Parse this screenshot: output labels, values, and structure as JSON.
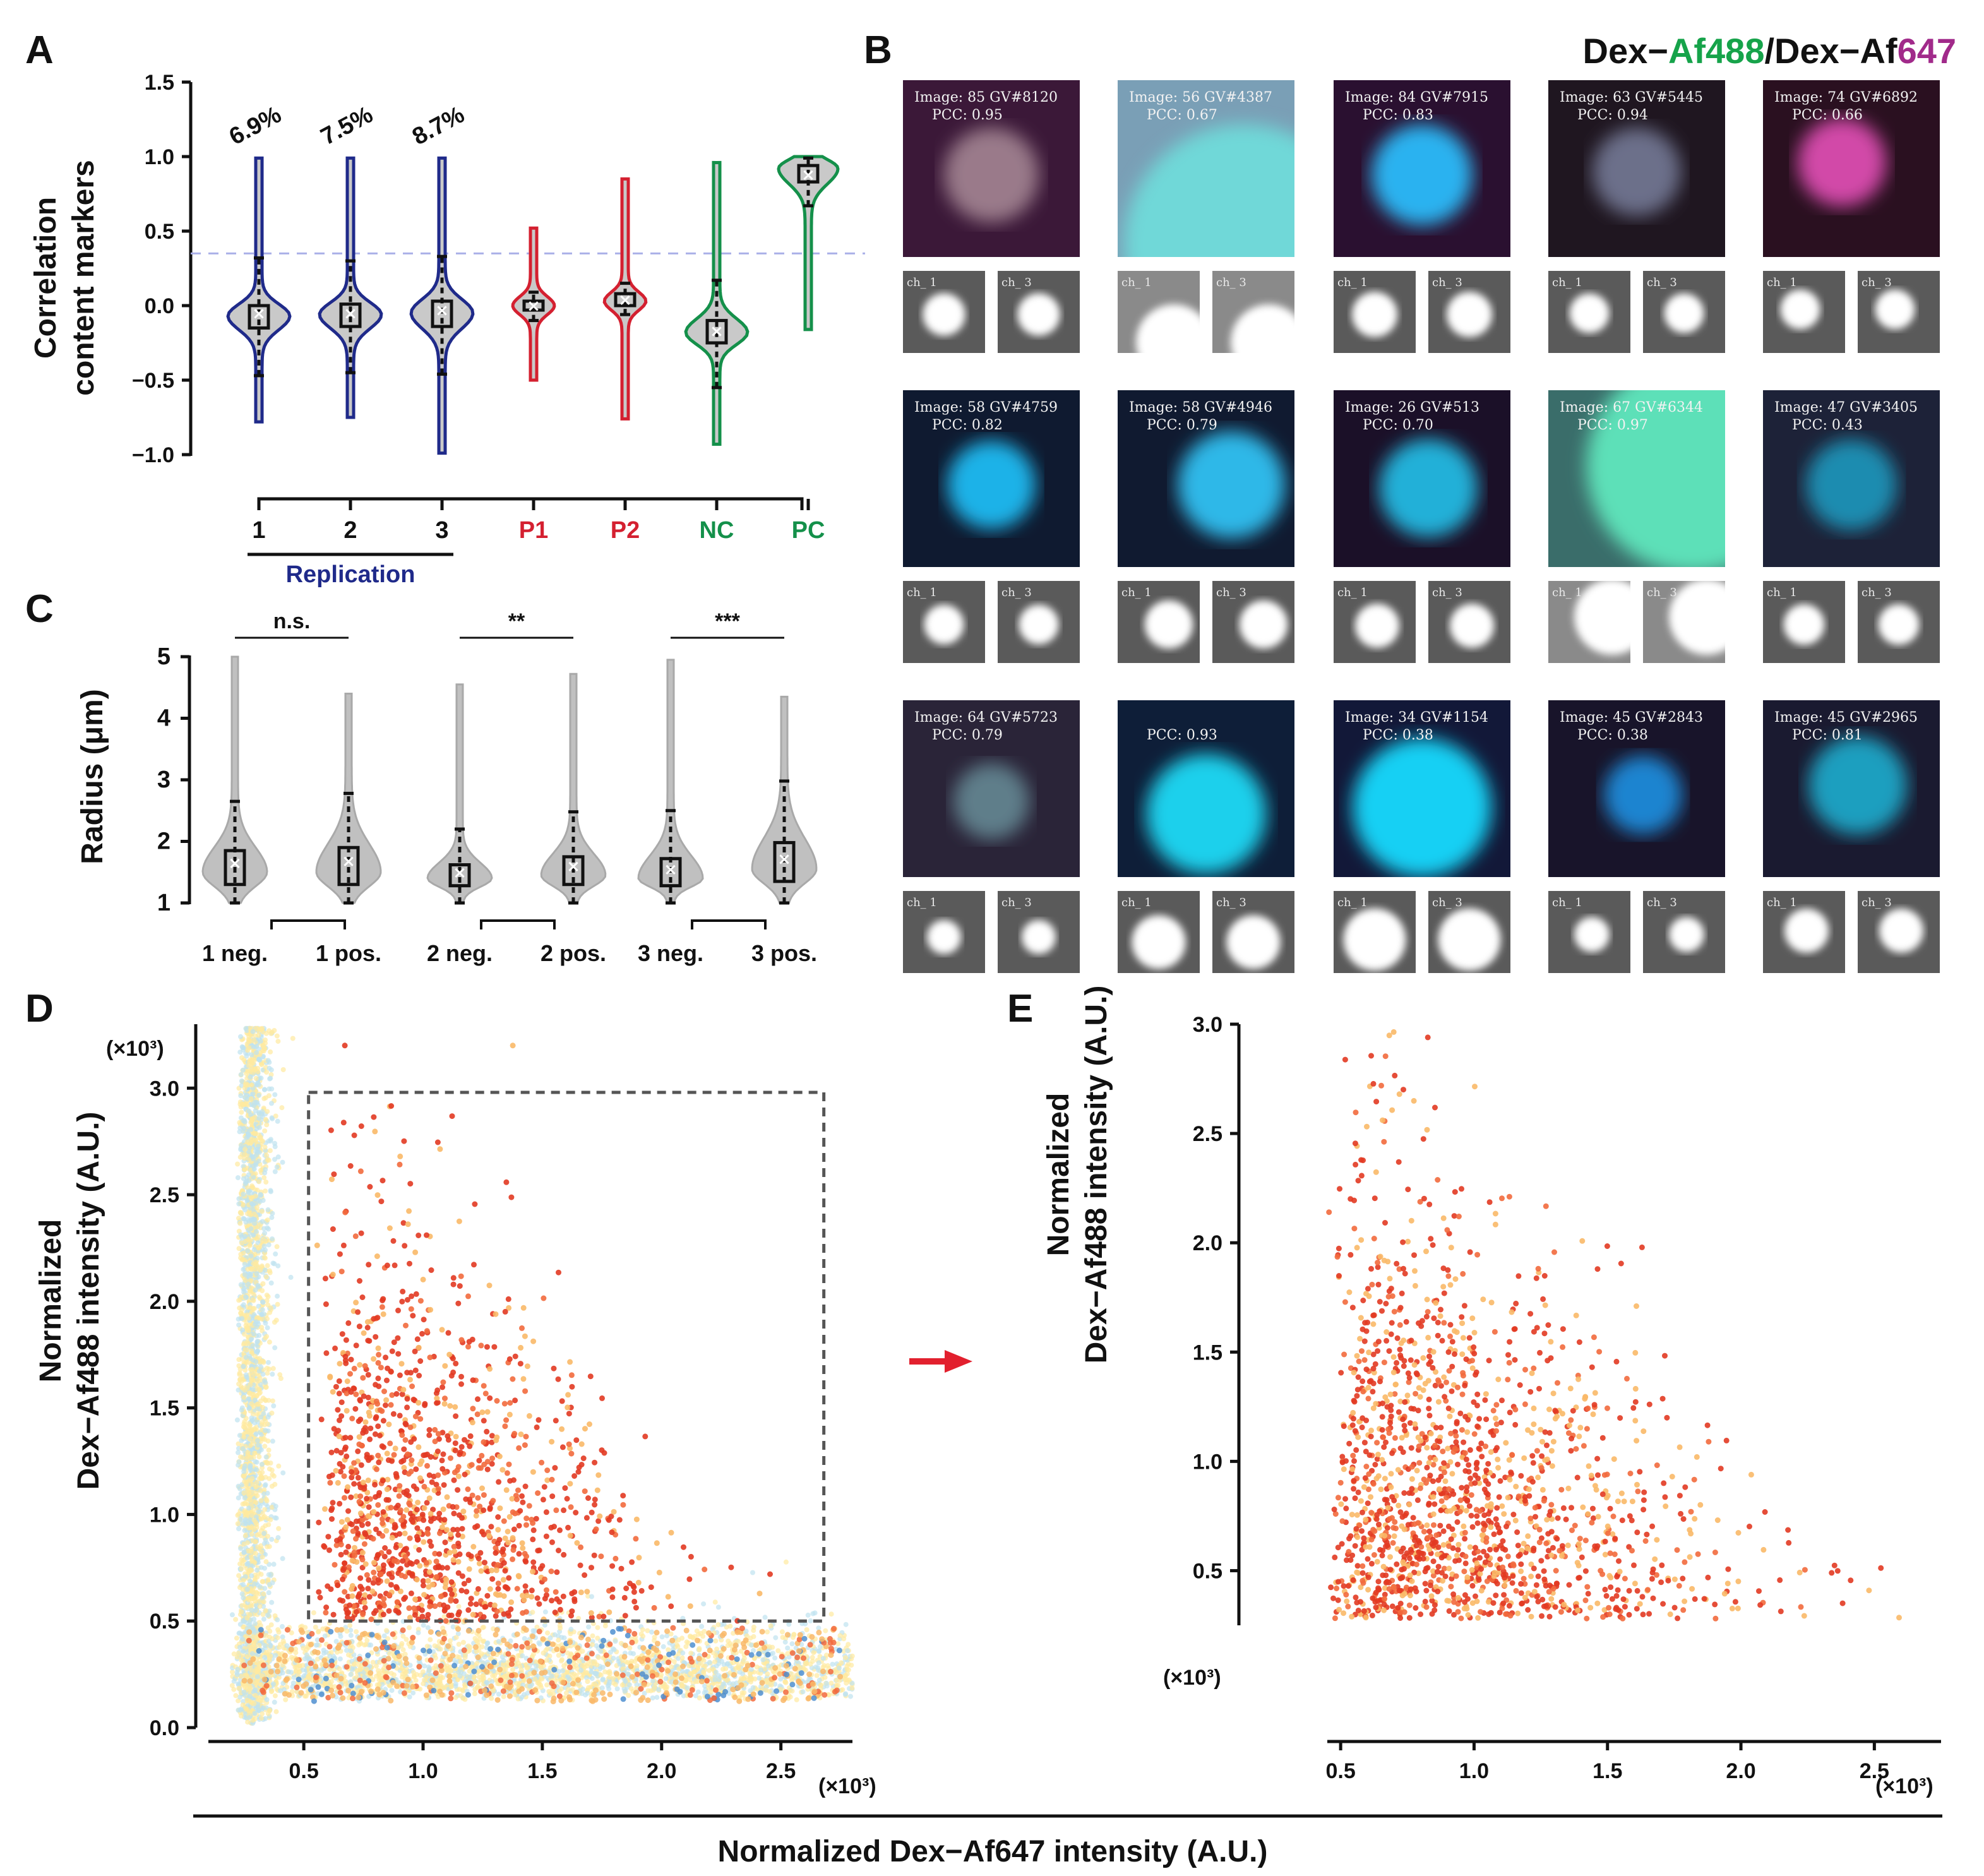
{
  "panels": {
    "A": "A",
    "B": "B",
    "C": "C",
    "D": "D",
    "E": "E"
  },
  "colors": {
    "replication": "#1f2a8a",
    "P": "#d42030",
    "control": "#14904a",
    "af488": "#16a34a",
    "af647": "#a12a8a",
    "threshold": "#aab0e8",
    "scatter": [
      "#ffe9a0",
      "#bfe3ef",
      "#f9b968",
      "#f26a3d",
      "#e23a22",
      "#4f8fd0"
    ]
  },
  "panelA": {
    "ylabel": [
      "Correlation",
      "content markers"
    ],
    "percentages": [
      "6.9%",
      "7.5%",
      "8.7%"
    ],
    "group_label": "Replication",
    "chart_data": {
      "type": "violin",
      "ylim": [
        -1.0,
        1.5
      ],
      "yticks": [
        "1.5",
        "1.0",
        "0.5",
        "0.0",
        "−0.5",
        "−1.0"
      ],
      "threshold": 0.35,
      "categories": [
        "1",
        "2",
        "3",
        "P1",
        "P2",
        "NC",
        "PC"
      ],
      "groups": [
        {
          "name": "1",
          "min": -0.78,
          "q1": -0.15,
          "median": -0.07,
          "q3": 0.0,
          "mean": -0.05,
          "wlo": -0.47,
          "whi": 0.32,
          "max": 0.99,
          "mode": -0.07
        },
        {
          "name": "2",
          "min": -0.75,
          "q1": -0.14,
          "median": -0.06,
          "q3": 0.01,
          "mean": -0.05,
          "wlo": -0.45,
          "whi": 0.3,
          "max": 0.99,
          "mode": -0.06
        },
        {
          "name": "3",
          "min": -0.99,
          "q1": -0.14,
          "median": -0.05,
          "q3": 0.03,
          "mean": -0.03,
          "wlo": -0.46,
          "whi": 0.33,
          "max": 0.99,
          "mode": -0.05
        },
        {
          "name": "P1",
          "min": -0.5,
          "q1": -0.03,
          "median": 0.0,
          "q3": 0.03,
          "mean": 0.0,
          "wlo": -0.1,
          "whi": 0.09,
          "max": 0.52,
          "mode": 0.0
        },
        {
          "name": "P2",
          "min": -0.76,
          "q1": 0.0,
          "median": 0.04,
          "q3": 0.08,
          "mean": 0.04,
          "wlo": -0.06,
          "whi": 0.15,
          "max": 0.85,
          "mode": 0.03
        },
        {
          "name": "NC",
          "min": -0.93,
          "q1": -0.25,
          "median": -0.17,
          "q3": -0.1,
          "mean": -0.17,
          "wlo": -0.55,
          "whi": 0.17,
          "max": 0.96,
          "mode": -0.18
        },
        {
          "name": "PC",
          "min": -0.16,
          "q1": 0.83,
          "median": 0.88,
          "q3": 0.94,
          "mean": 0.88,
          "wlo": 0.67,
          "whi": 0.99,
          "max": 1.0,
          "mode": 0.92
        }
      ]
    }
  },
  "panelB": {
    "title_prefix": "Dex−",
    "title_green": "Af488",
    "title_mid": "/Dex−Af",
    "title_pink": "647",
    "ch1": "ch_ 1",
    "ch3": "ch_ 3",
    "cells": [
      {
        "label": "Image: 85 GV#8120",
        "pcc": "PCC: 0.95"
      },
      {
        "label": "Image: 56 GV#4387",
        "pcc": "PCC: 0.67"
      },
      {
        "label": "Image: 84 GV#7915",
        "pcc": "PCC: 0.83"
      },
      {
        "label": "Image: 63 GV#5445",
        "pcc": "PCC: 0.94"
      },
      {
        "label": "Image: 74 GV#6892",
        "pcc": "PCC: 0.66"
      },
      {
        "label": "Image: 58 GV#4759",
        "pcc": "PCC: 0.82"
      },
      {
        "label": "Image: 58 GV#4946",
        "pcc": "PCC: 0.79"
      },
      {
        "label": "Image: 26 GV#513",
        "pcc": "PCC: 0.70"
      },
      {
        "label": "Image: 67 GV#6344",
        "pcc": "PCC: 0.97"
      },
      {
        "label": "Image: 47 GV#3405",
        "pcc": "PCC: 0.43"
      },
      {
        "label": "Image: 64 GV#5723",
        "pcc": "PCC: 0.79"
      },
      {
        "label": "",
        "pcc": "PCC: 0.93"
      },
      {
        "label": "Image: 34 GV#1154",
        "pcc": "PCC: 0.38"
      },
      {
        "label": "Image: 45 GV#2843",
        "pcc": "PCC: 0.38"
      },
      {
        "label": "Image: 45 GV#2965",
        "pcc": "PCC: 0.81"
      }
    ]
  },
  "panelC": {
    "ylabel": "Radius (μm)",
    "sig": [
      "n.s.",
      "**",
      "***"
    ],
    "chart_data": {
      "type": "violin",
      "ylim": [
        1,
        5
      ],
      "yticks": [
        "5",
        "4",
        "3",
        "2",
        "1"
      ],
      "categories": [
        "1 neg.",
        "1 pos.",
        "2 neg.",
        "2 pos.",
        "3 neg.",
        "3 pos."
      ],
      "groups": [
        {
          "name": "1 neg.",
          "min": 1.0,
          "q1": 1.3,
          "median": 1.5,
          "q3": 1.85,
          "mean": 1.65,
          "whi": 2.65,
          "max": 5.0,
          "mode": 1.5
        },
        {
          "name": "1 pos.",
          "min": 1.0,
          "q1": 1.3,
          "median": 1.55,
          "q3": 1.9,
          "mean": 1.68,
          "whi": 2.78,
          "max": 4.4,
          "mode": 1.5
        },
        {
          "name": "2 neg.",
          "min": 1.0,
          "q1": 1.28,
          "median": 1.42,
          "q3": 1.62,
          "mean": 1.5,
          "whi": 2.2,
          "max": 4.55,
          "mode": 1.4
        },
        {
          "name": "2 pos.",
          "min": 1.0,
          "q1": 1.3,
          "median": 1.5,
          "q3": 1.75,
          "mean": 1.6,
          "whi": 2.48,
          "max": 4.72,
          "mode": 1.45
        },
        {
          "name": "3 neg.",
          "min": 1.0,
          "q1": 1.28,
          "median": 1.45,
          "q3": 1.72,
          "mean": 1.55,
          "whi": 2.5,
          "max": 4.95,
          "mode": 1.4
        },
        {
          "name": "3 pos.",
          "min": 1.0,
          "q1": 1.35,
          "median": 1.6,
          "q3": 1.98,
          "mean": 1.72,
          "whi": 2.98,
          "max": 4.35,
          "mode": 1.55
        }
      ]
    }
  },
  "panelD": {
    "ylabel": [
      "Normalized",
      "Dex−Af488 intensity (A.U.)"
    ],
    "scale_y": "(×10³)",
    "scale_x": "(×10³)",
    "chart_data": {
      "type": "scatter",
      "xlim": [
        0.1,
        2.8
      ],
      "ylim": [
        0.0,
        3.3
      ],
      "xticks": [
        "0.5",
        "1.0",
        "1.5",
        "2.0",
        "2.5"
      ],
      "yticks": [
        "0.0",
        "0.5",
        "1.0",
        "1.5",
        "2.0",
        "2.5",
        "3.0"
      ],
      "gate": {
        "x": [
          0.52,
          2.68
        ],
        "y": [
          0.5,
          2.98
        ]
      },
      "description": "dense cluster along x=0.2-0.3 and y=0.1-0.4; colored points extend into gated region"
    }
  },
  "panelE": {
    "ylabel": [
      "Normalized",
      "Dex−Af488 intensity (A.U.)"
    ],
    "scale_y": "(×10³)",
    "scale_x": "(×10³)",
    "chart_data": {
      "type": "scatter",
      "xlim": [
        0.45,
        2.75
      ],
      "ylim": [
        0.25,
        3.0
      ],
      "xticks": [
        "0.5",
        "1.0",
        "1.5",
        "2.0",
        "2.5"
      ],
      "yticks": [
        "0.5",
        "1.0",
        "1.5",
        "2.0",
        "2.5",
        "3.0"
      ]
    }
  },
  "shared_xlabel": "Normalized Dex−Af647 intensity (A.U.)"
}
